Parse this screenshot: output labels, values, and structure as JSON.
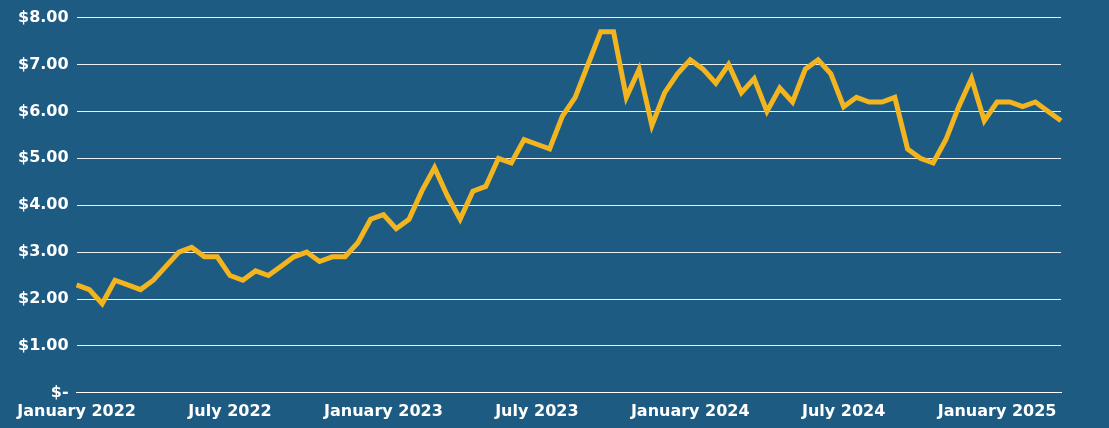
{
  "chart_data": {
    "type": "line",
    "categories": [
      "January 2022",
      null,
      null,
      null,
      null,
      null,
      null,
      null,
      null,
      null,
      null,
      null,
      "July 2022",
      null,
      null,
      null,
      null,
      null,
      null,
      null,
      null,
      null,
      null,
      null,
      "January 2023",
      null,
      null,
      null,
      null,
      null,
      null,
      null,
      null,
      null,
      null,
      null,
      "July 2023",
      null,
      null,
      null,
      null,
      null,
      null,
      null,
      null,
      null,
      null,
      null,
      "January 2024",
      null,
      null,
      null,
      null,
      null,
      null,
      null,
      null,
      null,
      null,
      null,
      "July 2024",
      null,
      null,
      null,
      null,
      null,
      null,
      null,
      null,
      null,
      null,
      null,
      "January 2025",
      null,
      null,
      null,
      null,
      null
    ],
    "values": [
      2.3,
      2.2,
      1.9,
      2.4,
      2.3,
      2.2,
      2.4,
      2.7,
      3.0,
      3.1,
      2.9,
      2.9,
      2.5,
      2.4,
      2.6,
      2.5,
      2.7,
      2.9,
      3.0,
      2.8,
      2.9,
      2.9,
      3.2,
      3.7,
      3.8,
      3.5,
      3.7,
      4.3,
      4.8,
      4.2,
      3.7,
      4.3,
      4.4,
      5.0,
      4.9,
      5.4,
      5.3,
      5.2,
      5.9,
      6.3,
      7.0,
      7.7,
      7.7,
      6.3,
      6.9,
      5.7,
      6.4,
      6.8,
      7.1,
      6.9,
      6.6,
      7.0,
      6.4,
      6.7,
      6.0,
      6.5,
      6.2,
      6.9,
      7.1,
      6.8,
      6.1,
      6.3,
      6.2,
      6.2,
      6.3,
      5.2,
      5.0,
      4.9,
      5.4,
      6.1,
      6.7,
      5.8,
      6.2,
      6.2,
      6.1,
      6.2,
      6.0,
      5.8
    ],
    "color": "#f2b51f",
    "ylim": [
      0,
      8
    ],
    "yticks": [
      {
        "value": 0,
        "label": "$-"
      },
      {
        "value": 1,
        "label": "$1.00"
      },
      {
        "value": 2,
        "label": "$2.00"
      },
      {
        "value": 3,
        "label": "$3.00"
      },
      {
        "value": 4,
        "label": "$4.00"
      },
      {
        "value": 5,
        "label": "$5.00"
      },
      {
        "value": 6,
        "label": "$6.00"
      },
      {
        "value": 7,
        "label": "$7.00"
      },
      {
        "value": 8,
        "label": "$8.00"
      }
    ],
    "grid": true
  }
}
